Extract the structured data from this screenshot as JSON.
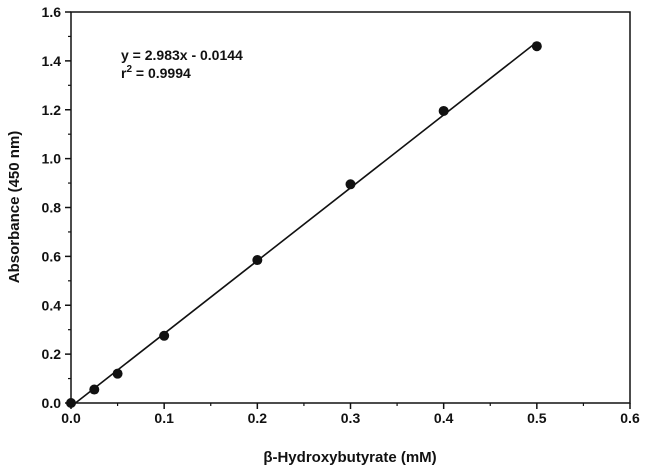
{
  "chart_data": {
    "type": "scatter",
    "title": "",
    "xlabel": "β-Hydroxybutyrate (mM)",
    "ylabel": "Absorbance (450 nm)",
    "xlim": [
      0,
      0.6
    ],
    "ylim": [
      0,
      1.6
    ],
    "x_ticks": [
      "0.0",
      "0.1",
      "0.2",
      "0.3",
      "0.4",
      "0.5",
      "0.6"
    ],
    "y_ticks": [
      "0.0",
      "0.2",
      "0.4",
      "0.6",
      "0.8",
      "1.0",
      "1.2",
      "1.4",
      "1.6"
    ],
    "grid": false,
    "points": [
      {
        "x": 0.0,
        "y": 0.0
      },
      {
        "x": 0.025,
        "y": 0.055
      },
      {
        "x": 0.05,
        "y": 0.12
      },
      {
        "x": 0.1,
        "y": 0.275
      },
      {
        "x": 0.2,
        "y": 0.585
      },
      {
        "x": 0.3,
        "y": 0.895
      },
      {
        "x": 0.4,
        "y": 1.195
      },
      {
        "x": 0.5,
        "y": 1.46
      }
    ],
    "fit": {
      "slope": 2.983,
      "intercept": -0.0144,
      "x_range": [
        0,
        0.5
      ]
    },
    "annotation": {
      "equation": "y = 2.983x - 0.0144",
      "r2_prefix": "r",
      "r2_exponent": "2",
      "r2_value": " = 0.9994"
    }
  }
}
